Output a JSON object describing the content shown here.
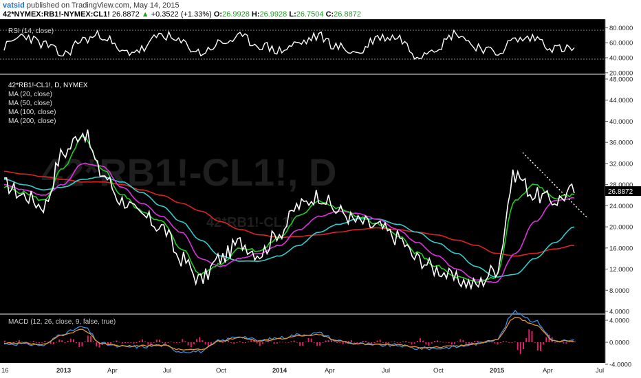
{
  "header": {
    "user": "vatsid",
    "published": "published on TradingView.com, May 14, 2015",
    "symbol": "42*NYMEX:RB1!-NYMEX:CL1!",
    "last": "26.8872",
    "change_arrow": "▲",
    "change": "+0.3522 (+1.33%)",
    "o_label": "O:",
    "o": "26.9928",
    "h_label": "H:",
    "h": "26.9928",
    "l_label": "L:",
    "l": "26.7504",
    "c_label": "C:",
    "c": "26.8872"
  },
  "colors": {
    "background": "#000000",
    "price": "#ffffff",
    "ma20": "#22cc22",
    "ma50": "#dd33dd",
    "ma100": "#33cccc",
    "ma200": "#dd2222",
    "macd": "#3b8fe0",
    "signal": "#e8922a",
    "histogram": "#e0206a",
    "axis_bg": "#ffffff",
    "up": "#1aa61a"
  },
  "rsi_panel": {
    "label": "RSI (14, close)",
    "ticks": [
      "80.0000",
      "60.0000",
      "40.0000",
      "20.0000"
    ]
  },
  "main_panel": {
    "legend": [
      "42*RB1!-CL1!, D, NYMEX",
      "MA (20, close)",
      "MA (50, close)",
      "MA (100, close)",
      "MA (200, close)"
    ],
    "watermark_big": "42*RB1!-CL1!, D",
    "watermark_small": "42*RB1!-CL1!",
    "ticks": [
      "48.0000",
      "44.0000",
      "40.0000",
      "36.0000",
      "32.0000",
      "28.0000",
      "24.0000",
      "20.0000",
      "16.0000",
      "12.0000",
      "8.0000",
      "4.0000"
    ],
    "last_price_tag": "26.8872"
  },
  "macd_panel": {
    "label": "MACD (12, 26, close, 9, false, true)",
    "ticks": [
      "4.0000",
      "0.0000",
      "-4.0000"
    ]
  },
  "x_axis": {
    "ticks": [
      "16",
      "2013",
      "Apr",
      "Jul",
      "Oct",
      "2014",
      "Apr",
      "Jul",
      "Oct",
      "2015",
      "Apr",
      "Jul"
    ]
  },
  "chart_data": {
    "type": "line",
    "x": [
      "2012-12",
      "2013-01",
      "2013-02",
      "2013-03",
      "2013-04",
      "2013-05",
      "2013-06",
      "2013-07",
      "2013-08",
      "2013-09",
      "2013-10",
      "2013-11",
      "2013-12",
      "2014-01",
      "2014-02",
      "2014-03",
      "2014-04",
      "2014-05",
      "2014-06",
      "2014-07",
      "2014-08",
      "2014-09",
      "2014-10",
      "2014-11",
      "2014-12",
      "2015-01",
      "2015-02",
      "2015-03",
      "2015-04",
      "2015-05"
    ],
    "series": [
      {
        "name": "42*RB1!-CL1!, D, NYMEX",
        "values": [
          28,
          26,
          24,
          34,
          38,
          30,
          25,
          22,
          20,
          14,
          10,
          14,
          17,
          15,
          19,
          24,
          26,
          23,
          21,
          20,
          18,
          14,
          12,
          10,
          9,
          12,
          30,
          26,
          25,
          26.9
        ]
      },
      {
        "name": "MA (20, close)",
        "values": [
          27.5,
          26.5,
          25,
          31,
          37,
          31,
          26,
          23,
          21,
          16,
          11,
          13,
          16,
          15.5,
          18,
          22,
          25,
          23.5,
          22,
          20.5,
          18.5,
          15,
          12.5,
          10.5,
          9.5,
          10.5,
          25,
          28,
          25.5,
          26
        ]
      },
      {
        "name": "MA (50, close)",
        "values": [
          28,
          27,
          26,
          28,
          32,
          31.5,
          27.5,
          24.5,
          22,
          19,
          14,
          12.5,
          14,
          15,
          16.5,
          19.5,
          22,
          23,
          22.5,
          21.5,
          19.5,
          17,
          14.5,
          12,
          10,
          9.5,
          15,
          21,
          25,
          25.5
        ]
      },
      {
        "name": "MA (100, close)",
        "values": [
          29,
          28,
          27,
          27.5,
          29,
          29.5,
          28.5,
          26.5,
          24,
          21,
          17.5,
          14.5,
          13.5,
          13.5,
          14.5,
          16.5,
          19,
          20.5,
          21.5,
          21.5,
          20.5,
          19,
          17,
          15,
          12.5,
          10.5,
          11,
          14,
          17,
          20
        ]
      },
      {
        "name": "MA (200, close)",
        "values": [
          30.5,
          30,
          29.5,
          29,
          28.5,
          28.5,
          28,
          27,
          26,
          24.5,
          23,
          21,
          19.5,
          18.5,
          18,
          18.2,
          18.5,
          19,
          19.5,
          19.8,
          19.5,
          19,
          18.5,
          17.5,
          16.5,
          15,
          14.5,
          15,
          15.8,
          16.5
        ]
      }
    ],
    "ylim": [
      4,
      48
    ]
  }
}
